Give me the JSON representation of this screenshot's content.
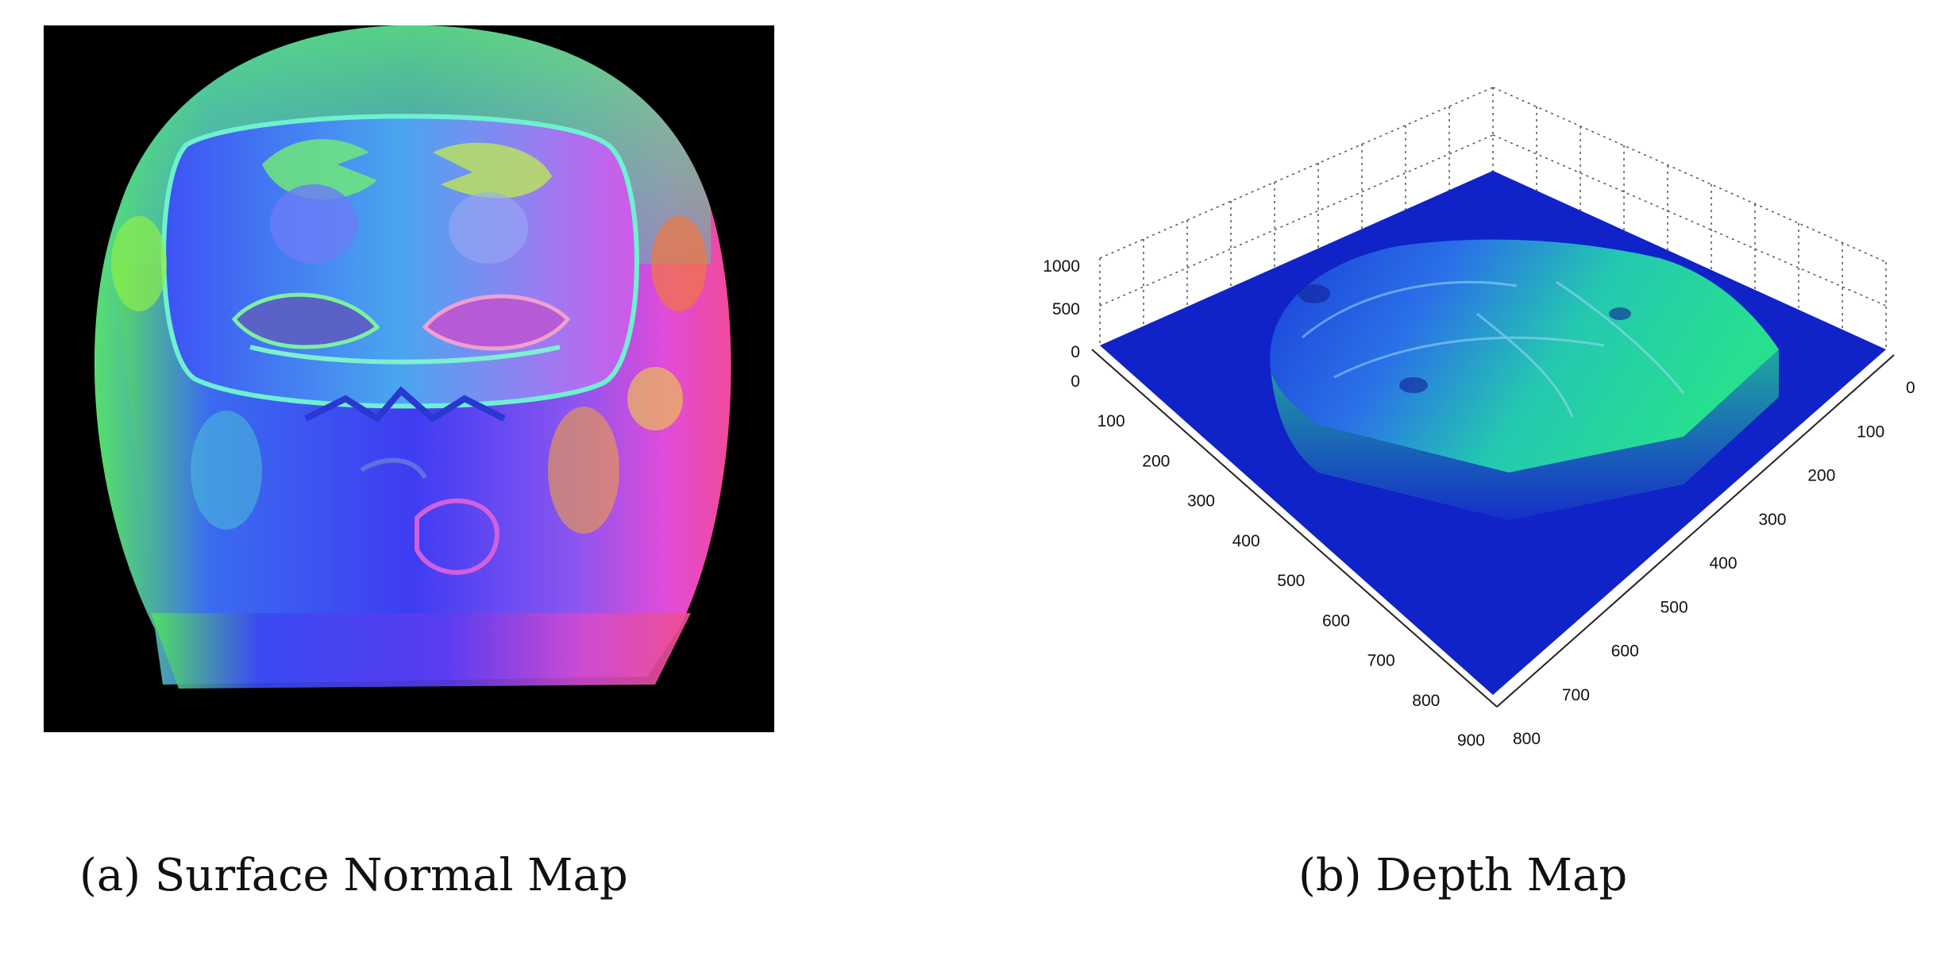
{
  "captions": {
    "a": "(a) Surface Normal Map",
    "b": "(b) Depth Map"
  },
  "depth_plot": {
    "z_ticks": [
      "0",
      "500",
      "1000"
    ],
    "y_ticks": [
      "0",
      "100",
      "200",
      "300",
      "400",
      "500",
      "600",
      "700",
      "800",
      "900"
    ],
    "x_ticks": [
      "0",
      "100",
      "200",
      "300",
      "400",
      "500",
      "600",
      "700",
      "800"
    ],
    "colors": {
      "base": "#0f23c8",
      "surface_low": "#1a3fd6",
      "surface_high": "#27e08f"
    }
  }
}
